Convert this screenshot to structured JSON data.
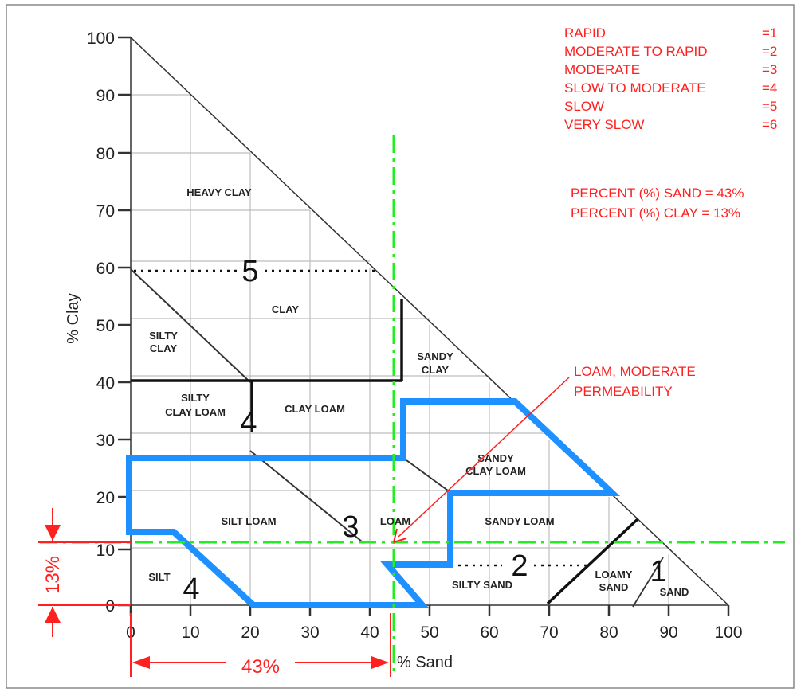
{
  "axes": {
    "y_label": "% Clay",
    "x_label": "% Sand",
    "y_ticks": [
      "100",
      "90",
      "80",
      "70",
      "60",
      "50",
      "40",
      "30",
      "20",
      "10",
      "0"
    ],
    "x_ticks": [
      "0",
      "10",
      "20",
      "30",
      "40",
      "50",
      "60",
      "70",
      "80",
      "90",
      "100"
    ]
  },
  "legend": [
    {
      "label": "RAPID",
      "code": "=1"
    },
    {
      "label": "MODERATE TO RAPID",
      "code": "=2"
    },
    {
      "label": "MODERATE",
      "code": "=3"
    },
    {
      "label": "SLOW TO MODERATE",
      "code": "=4"
    },
    {
      "label": "SLOW",
      "code": "=5"
    },
    {
      "label": "VERY SLOW",
      "code": "=6"
    }
  ],
  "percent_note": {
    "sand": "PERCENT (%) SAND = 43%",
    "clay": "PERCENT (%) CLAY  = 13%"
  },
  "callout": {
    "line1": "LOAM, MODERATE",
    "line2": "PERMEABILITY"
  },
  "zones": {
    "heavy_clay": "HEAVY CLAY",
    "clay": "CLAY",
    "silty_clay_1": "SILTY",
    "silty_clay_2": "CLAY",
    "sandy_clay_1": "SANDY",
    "sandy_clay_2": "CLAY",
    "silty_clay_loam_1": "SILTY",
    "silty_clay_loam_2": "CLAY LOAM",
    "clay_loam": "CLAY LOAM",
    "sandy_clay_loam_1": "SANDY",
    "sandy_clay_loam_2": "CLAY LOAM",
    "silt_loam": "SILT LOAM",
    "loam": "LOAM",
    "sandy_loam": "SANDY LOAM",
    "silt": "SILT",
    "silty_sand": "SILTY SAND",
    "loamy_sand_1": "LOAMY",
    "loamy_sand_2": "SAND",
    "sand": "SAND"
  },
  "permeability_numbers": {
    "n5": "5",
    "n4a": "4",
    "n3": "3",
    "n4b": "4",
    "n2": "2",
    "n1": "1"
  },
  "measures": {
    "sand_pct": "43%",
    "clay_pct": "13%"
  }
}
